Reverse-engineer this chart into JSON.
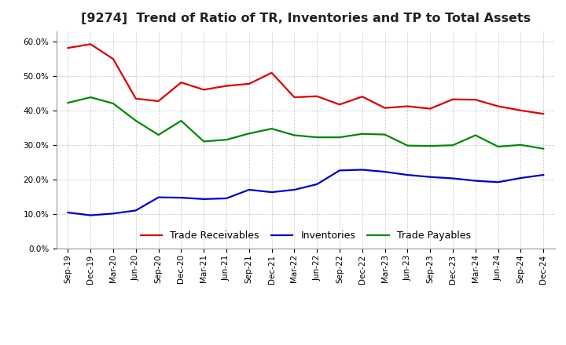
{
  "title": "[9274]  Trend of Ratio of TR, Inventories and TP to Total Assets",
  "x_labels": [
    "Sep-19",
    "Dec-19",
    "Mar-20",
    "Jun-20",
    "Sep-20",
    "Dec-20",
    "Mar-21",
    "Jun-21",
    "Sep-21",
    "Dec-21",
    "Mar-22",
    "Jun-22",
    "Sep-22",
    "Dec-22",
    "Mar-23",
    "Jun-23",
    "Sep-23",
    "Dec-23",
    "Mar-24",
    "Jun-24",
    "Sep-24",
    "Dec-24"
  ],
  "trade_receivables": [
    0.581,
    0.592,
    0.549,
    0.434,
    0.427,
    0.481,
    0.46,
    0.471,
    0.477,
    0.509,
    0.438,
    0.441,
    0.417,
    0.44,
    0.407,
    0.412,
    0.405,
    0.432,
    0.431,
    0.412,
    0.4,
    0.39
  ],
  "inventories": [
    0.104,
    0.096,
    0.101,
    0.11,
    0.148,
    0.147,
    0.143,
    0.145,
    0.17,
    0.163,
    0.17,
    0.186,
    0.226,
    0.228,
    0.222,
    0.213,
    0.207,
    0.203,
    0.196,
    0.192,
    0.204,
    0.213
  ],
  "trade_payables": [
    0.422,
    0.438,
    0.42,
    0.37,
    0.329,
    0.37,
    0.31,
    0.315,
    0.333,
    0.347,
    0.328,
    0.322,
    0.322,
    0.332,
    0.33,
    0.298,
    0.297,
    0.299,
    0.328,
    0.295,
    0.3,
    0.289
  ],
  "tr_color": "#dd0000",
  "inv_color": "#0000cc",
  "tp_color": "#008800",
  "line_width": 1.6,
  "ylim": [
    0.0,
    0.63
  ],
  "yticks": [
    0.0,
    0.1,
    0.2,
    0.3,
    0.4,
    0.5,
    0.6
  ],
  "legend_labels": [
    "Trade Receivables",
    "Inventories",
    "Trade Payables"
  ],
  "background_color": "#ffffff",
  "plot_bg_color": "#ffffff",
  "grid_color": "#aaaaaa",
  "title_fontsize": 11.5,
  "tick_fontsize": 7.5,
  "legend_fontsize": 9.0
}
